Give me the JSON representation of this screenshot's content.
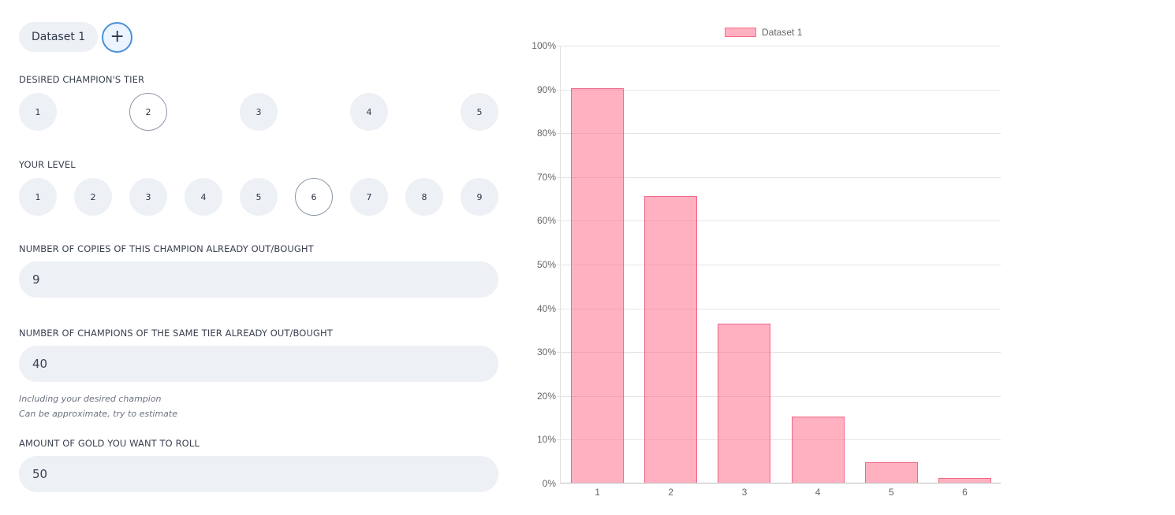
{
  "tabs": {
    "items": [
      {
        "label": "Dataset 1",
        "active": true
      }
    ],
    "add_label": "+"
  },
  "tier": {
    "label": "Desired champion's tier",
    "options": [
      "1",
      "2",
      "3",
      "4",
      "5"
    ],
    "selected": "2"
  },
  "level": {
    "label": "Your level",
    "options": [
      "1",
      "2",
      "3",
      "4",
      "5",
      "6",
      "7",
      "8",
      "9"
    ],
    "selected": "6"
  },
  "copies": {
    "label": "Number of copies of this champion already out/bought",
    "value": "9"
  },
  "same_tier": {
    "label": "Number of champions of the same tier already out/bought",
    "value": "40",
    "hint_1": "Including your desired champion",
    "hint_2": "Can be approximate, try to estimate"
  },
  "gold": {
    "label": "Amount of gold you want to roll",
    "value": "50"
  },
  "colors": {
    "bar_fill": "#fbb0c0",
    "bar_border": "#f0607f",
    "input_bg": "#edf0f5",
    "accent": "#4a90d9"
  },
  "chart_data": {
    "type": "bar",
    "title": "",
    "legend": [
      "Dataset 1"
    ],
    "legend_position": "top",
    "categories": [
      "1",
      "2",
      "3",
      "4",
      "5",
      "6"
    ],
    "series": [
      {
        "name": "Dataset 1",
        "values": [
          90.2,
          65.5,
          36.3,
          15.1,
          4.7,
          1.0
        ]
      }
    ],
    "xlabel": "",
    "ylabel": "",
    "ylim": [
      0,
      100
    ],
    "yticks": [
      "0%",
      "10%",
      "20%",
      "30%",
      "40%",
      "50%",
      "60%",
      "70%",
      "80%",
      "90%",
      "100%"
    ],
    "grid": true
  }
}
